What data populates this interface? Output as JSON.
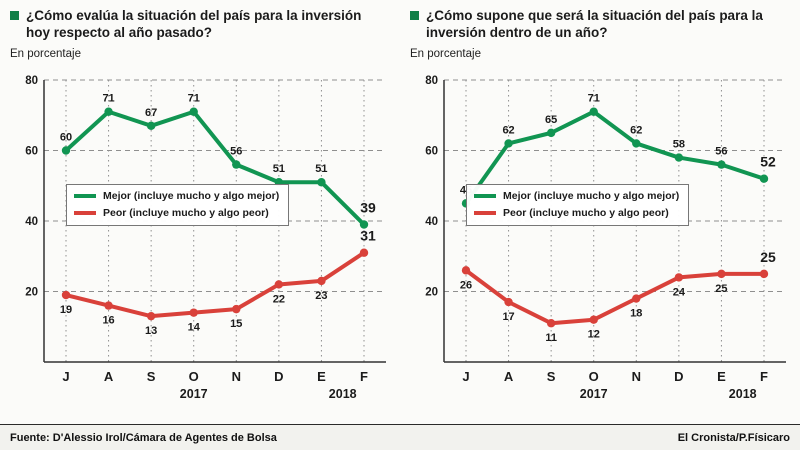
{
  "colors": {
    "green": "#119552",
    "red": "#d9413a",
    "bullet": "#0f7f46",
    "grid": "#8f8f8f",
    "axis": "#333333",
    "label_text": "#1b1b1b"
  },
  "footer": {
    "source_label": "Fuente: D'Alessio Irol/Cámara de Agentes de Bolsa",
    "credit_label": "El Cronista/P.Físicaro"
  },
  "chart_data": [
    {
      "type": "line",
      "title": "¿Cómo evalúa la situación del país para la inversión hoy respecto al año pasado?",
      "subtitle": "En porcentaje",
      "categories": [
        "J",
        "A",
        "S",
        "O",
        "N",
        "D",
        "E",
        "F"
      ],
      "year_labels": [
        {
          "label": "2017",
          "at": 3
        },
        {
          "label": "2018",
          "at": 6.5
        }
      ],
      "ylim": [
        0,
        80
      ],
      "yticks": [
        20,
        40,
        60,
        80
      ],
      "grid": true,
      "legend_position": "inside-left-middle",
      "series": [
        {
          "name": "Mejor (incluye mucho y algo mejor)",
          "color": "#119552",
          "values": [
            60,
            71,
            67,
            71,
            56,
            51,
            51,
            39
          ],
          "label_position": "above"
        },
        {
          "name": "Peor (incluye mucho y algo peor)",
          "color": "#d9413a",
          "values": [
            19,
            16,
            13,
            14,
            15,
            22,
            23,
            31
          ],
          "label_position": "below"
        }
      ]
    },
    {
      "type": "line",
      "title": "¿Cómo supone que será la situación del país para la inversión dentro de un año?",
      "subtitle": "En porcentaje",
      "categories": [
        "J",
        "A",
        "S",
        "O",
        "N",
        "D",
        "E",
        "F"
      ],
      "year_labels": [
        {
          "label": "2017",
          "at": 3
        },
        {
          "label": "2018",
          "at": 6.5
        }
      ],
      "ylim": [
        0,
        80
      ],
      "yticks": [
        20,
        40,
        60,
        80
      ],
      "grid": true,
      "legend_position": "inside-left-middle",
      "series": [
        {
          "name": "Mejor (incluye mucho y algo mejor)",
          "color": "#119552",
          "values": [
            45,
            62,
            65,
            71,
            62,
            58,
            56,
            52
          ],
          "label_position": "above"
        },
        {
          "name": "Peor (incluye mucho y algo peor)",
          "color": "#d9413a",
          "values": [
            26,
            17,
            11,
            12,
            18,
            24,
            25,
            25
          ],
          "label_position": "below"
        }
      ]
    }
  ]
}
